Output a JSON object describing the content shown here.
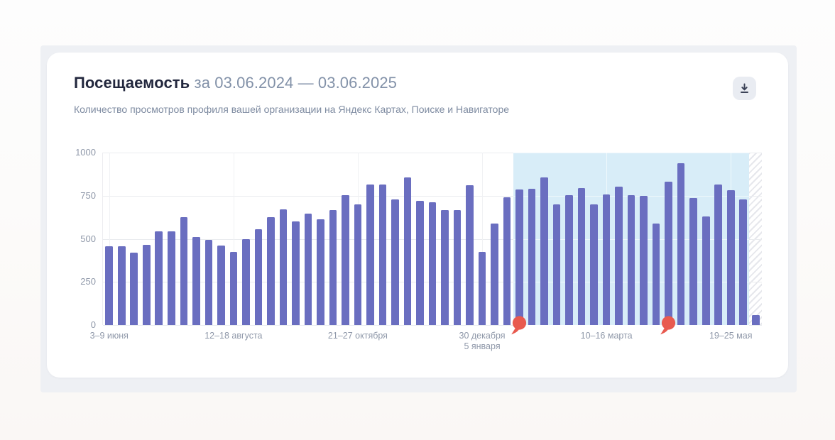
{
  "header": {
    "title": "Посещаемость",
    "period": "за 03.06.2024 — 03.06.2025",
    "subtitle": "Количество просмотров профиля вашей организации на Яндекс Картах, Поиске и Навигаторе",
    "download_tooltip": "Скачать"
  },
  "colors": {
    "card_bg": "#ffffff",
    "panel_bg": "#eef0f4",
    "title_dark": "#23283e",
    "title_gray": "#8291a8",
    "axis_text": "#8f98a9",
    "grid_gray": "#eaecef",
    "grid_white": "rgba(255,255,255,0.6)",
    "button_bg": "#e9ecf2",
    "button_icon": "#3b4257"
  },
  "chart_data": {
    "type": "bar",
    "title": "Посещаемость за 03.06.2024 — 03.06.2025",
    "xlabel": "",
    "ylabel": "",
    "ylim": [
      0,
      1000
    ],
    "yticks": [
      0,
      250,
      500,
      750,
      1000
    ],
    "grid": true,
    "legend": false,
    "bar_color": "#6a6ec0",
    "highlight_color": "#d8edf8",
    "marker_color": "#e85a4f",
    "categories_note": "weekly bars from 3–9 июня 2024 to 2–3 июня 2025",
    "values": [
      455,
      455,
      420,
      465,
      545,
      545,
      625,
      510,
      495,
      460,
      425,
      500,
      557,
      625,
      670,
      600,
      645,
      615,
      665,
      755,
      700,
      815,
      815,
      730,
      855,
      720,
      712,
      668,
      665,
      810,
      425,
      590,
      740,
      785,
      790,
      855,
      700,
      755,
      795,
      700,
      757,
      803,
      752,
      750,
      590,
      832,
      940,
      735,
      628,
      815,
      783,
      727,
      58
    ],
    "x_tick_labels": [
      {
        "slot": 0,
        "lines": [
          "3–9 июня"
        ]
      },
      {
        "slot": 10,
        "lines": [
          "12–18 августа"
        ]
      },
      {
        "slot": 20,
        "lines": [
          "21–27 октября"
        ]
      },
      {
        "slot": 30,
        "lines": [
          "30 декабря",
          "5 января"
        ]
      },
      {
        "slot": 40,
        "lines": [
          "10–16 марта"
        ]
      },
      {
        "slot": 50,
        "lines": [
          "19–25 мая"
        ]
      }
    ],
    "highlight": {
      "start_slot": 33,
      "end_slot": 51
    },
    "hatched_slot": 52,
    "markers": [
      {
        "slot": 33
      },
      {
        "slot": 45
      }
    ]
  }
}
